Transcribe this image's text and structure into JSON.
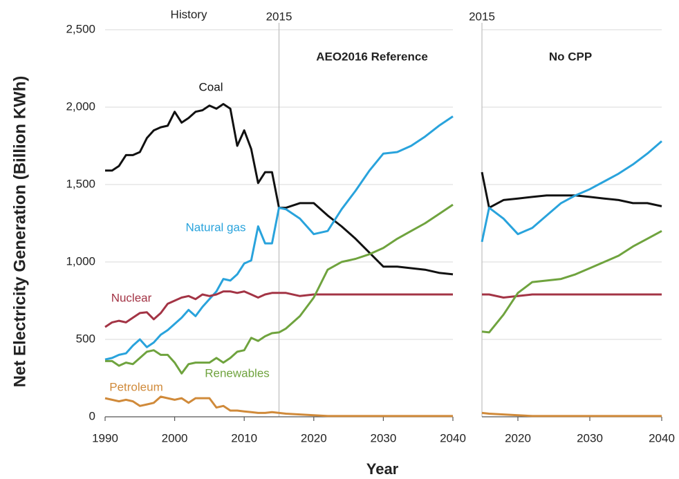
{
  "chart_data": [
    {
      "type": "line",
      "title": "AEO2016 Reference",
      "annotation": "History",
      "y_label": "Net Electricity Generation (Billion KWh)",
      "x_label": "Year",
      "vline": 2015,
      "x": [
        1990,
        1991,
        1992,
        1993,
        1994,
        1995,
        1996,
        1997,
        1998,
        1999,
        2000,
        2001,
        2002,
        2003,
        2004,
        2005,
        2006,
        2007,
        2008,
        2009,
        2010,
        2011,
        2012,
        2013,
        2014,
        2015,
        2016,
        2018,
        2020,
        2022,
        2024,
        2026,
        2028,
        2030,
        2032,
        2034,
        2036,
        2038,
        2040
      ],
      "series": [
        {
          "name": "Coal",
          "color": "#111111",
          "values": [
            1590,
            1590,
            1620,
            1690,
            1690,
            1710,
            1800,
            1850,
            1870,
            1880,
            1970,
            1900,
            1930,
            1970,
            1980,
            2010,
            1990,
            2020,
            1990,
            1750,
            1850,
            1730,
            1510,
            1580,
            1580,
            1350,
            1350,
            1380,
            1380,
            1300,
            1230,
            1150,
            1060,
            970,
            970,
            960,
            950,
            930,
            920
          ]
        },
        {
          "name": "Natural gas",
          "color": "#29a3dc",
          "values": [
            370,
            380,
            400,
            410,
            460,
            500,
            450,
            480,
            530,
            560,
            600,
            640,
            690,
            650,
            710,
            760,
            810,
            890,
            880,
            920,
            990,
            1010,
            1230,
            1120,
            1120,
            1350,
            1340,
            1280,
            1180,
            1200,
            1340,
            1460,
            1590,
            1700,
            1710,
            1750,
            1810,
            1880,
            1940
          ]
        },
        {
          "name": "Nuclear",
          "color": "#a33445",
          "values": [
            580,
            610,
            620,
            610,
            640,
            670,
            675,
            630,
            670,
            730,
            750,
            770,
            780,
            760,
            790,
            780,
            790,
            810,
            810,
            800,
            810,
            790,
            770,
            790,
            800,
            800,
            800,
            780,
            790,
            790,
            790,
            790,
            790,
            790,
            790,
            790,
            790,
            790,
            790
          ]
        },
        {
          "name": "Renewables",
          "color": "#6fa33e",
          "values": [
            360,
            360,
            330,
            350,
            340,
            380,
            420,
            430,
            400,
            400,
            350,
            280,
            340,
            350,
            350,
            350,
            380,
            350,
            380,
            420,
            430,
            510,
            490,
            520,
            540,
            545,
            570,
            650,
            770,
            950,
            1000,
            1020,
            1050,
            1090,
            1150,
            1200,
            1250,
            1310,
            1370
          ]
        },
        {
          "name": "Petroleum",
          "color": "#d08a3a",
          "values": [
            120,
            110,
            100,
            110,
            100,
            70,
            80,
            90,
            130,
            120,
            110,
            120,
            90,
            120,
            120,
            120,
            60,
            70,
            40,
            40,
            35,
            30,
            25,
            25,
            30,
            25,
            20,
            15,
            10,
            5,
            5,
            5,
            5,
            5,
            5,
            5,
            5,
            5,
            5
          ]
        }
      ],
      "xlim": [
        1990,
        2040
      ],
      "xticks": [
        1990,
        2000,
        2010,
        2020,
        2030,
        2040
      ],
      "ylim": [
        0,
        2500
      ],
      "yticks": [
        0,
        500,
        {
          "value": 1000,
          "label": "1,000"
        },
        {
          "value": 1500,
          "label": "1,500"
        },
        {
          "value": 2000,
          "label": "2,000"
        },
        {
          "value": 2500,
          "label": "2,500"
        }
      ],
      "grid": true
    },
    {
      "type": "line",
      "title": "No CPP",
      "vline": 2015,
      "x": [
        2015,
        2016,
        2018,
        2020,
        2022,
        2024,
        2026,
        2028,
        2030,
        2032,
        2034,
        2036,
        2038,
        2040
      ],
      "series": [
        {
          "color": "#111111",
          "values": [
            1580,
            1350,
            1400,
            1410,
            1420,
            1430,
            1430,
            1430,
            1420,
            1410,
            1400,
            1380,
            1380,
            1360
          ]
        },
        {
          "color": "#29a3dc",
          "values": [
            1130,
            1350,
            1280,
            1180,
            1220,
            1300,
            1380,
            1430,
            1470,
            1520,
            1570,
            1630,
            1700,
            1780
          ]
        },
        {
          "color": "#a33445",
          "values": [
            790,
            790,
            770,
            780,
            790,
            790,
            790,
            790,
            790,
            790,
            790,
            790,
            790,
            790
          ]
        },
        {
          "color": "#6fa33e",
          "values": [
            550,
            545,
            660,
            800,
            870,
            880,
            890,
            920,
            960,
            1000,
            1040,
            1100,
            1150,
            1200
          ]
        },
        {
          "color": "#d08a3a",
          "values": [
            25,
            20,
            15,
            10,
            5,
            5,
            5,
            5,
            5,
            5,
            5,
            5,
            5,
            5
          ]
        }
      ],
      "xlim": [
        2015,
        2040
      ],
      "xticks": [
        2020,
        2030,
        2040
      ],
      "ylim": [
        0,
        2500
      ],
      "yticks": [
        0,
        500,
        1000,
        1500,
        2000,
        2500
      ],
      "grid": true
    }
  ]
}
